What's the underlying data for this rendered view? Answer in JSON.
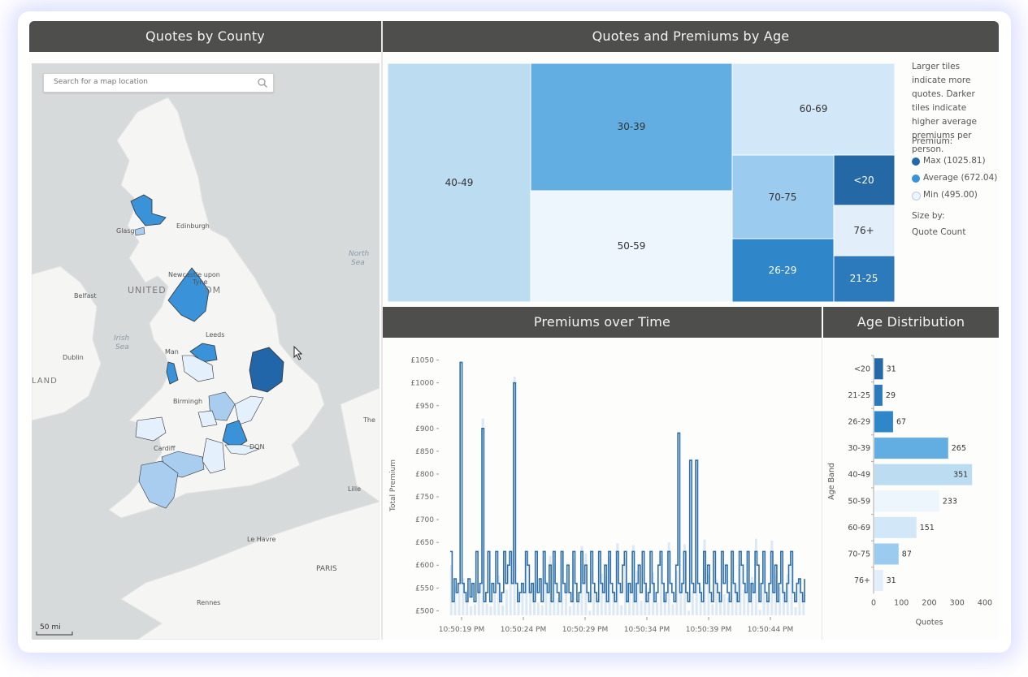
{
  "headers": {
    "county": "Quotes by County",
    "age": "Quotes and Premiums by Age",
    "time": "Premiums over Time",
    "dist": "Age Distribution"
  },
  "map": {
    "search_placeholder": "Search for a map location",
    "scale": "50 mi",
    "labels": {
      "edinburgh": "Edinburgh",
      "glasgow": "Glasg",
      "newcastle": "Newcastle upon",
      "tyne": "Tyne",
      "united": "UNITED",
      "kingdom": "OM",
      "belfast": "Belfast",
      "irish": "Irish",
      "sea": "Sea",
      "north": "North",
      "northsea": "Sea",
      "leeds": "Leeds",
      "man": "Man",
      "dublin": "Dublin",
      "land": "LAND",
      "birmingham": "Birmingh",
      "cardiff": "Cardiff",
      "london": "DON",
      "the": "The",
      "lille": "Lille",
      "lehavre": "Le Havre",
      "paris": "PARIS",
      "rennes": "Rennes"
    },
    "colors": {
      "max": "#2166a8",
      "mid": "#3a93d8",
      "light": "#a8cdef",
      "min": "#e4f0fb"
    }
  },
  "treemap": {
    "legend": {
      "desc": "Larger tiles indicate more quotes. Darker tiles indicate higher average premiums per person.",
      "premium_label": "Premium:",
      "max": "Max (1025.81)",
      "avg": "Average (672.04)",
      "min": "Min (495.00)",
      "size_label": "Size by:",
      "size_value": "Quote Count"
    },
    "tiles": [
      {
        "label": "40-49",
        "color": "#bcdcf2"
      },
      {
        "label": "30-39",
        "color": "#62aee2"
      },
      {
        "label": "50-59",
        "color": "#eef6fd"
      },
      {
        "label": "60-69",
        "color": "#d2e8f8"
      },
      {
        "label": "70-75",
        "color": "#9ccbf0"
      },
      {
        "label": "<20",
        "color": "#2468a6"
      },
      {
        "label": "76+",
        "color": "#e2effb"
      },
      {
        "label": "26-29",
        "color": "#2f86c8"
      },
      {
        "label": "21-25",
        "color": "#2c7abb"
      }
    ]
  },
  "chart_data": [
    {
      "type": "line",
      "title": "Premiums over Time",
      "ylabel": "Total Premium",
      "ylim": [
        490,
        1060
      ],
      "y_ticks": [
        "£500",
        "£550",
        "£600",
        "£650",
        "£700",
        "£750",
        "£800",
        "£850",
        "£900",
        "£950",
        "£1000",
        "£1050"
      ],
      "x_ticks": [
        "10:50:19 PM",
        "10:50:24 PM",
        "10:50:29 PM",
        "10:50:34 PM",
        "10:50:39 PM",
        "10:50:44 PM"
      ],
      "series": [
        {
          "values": [
            630,
            520,
            570,
            540,
            560,
            1045,
            560,
            540,
            520,
            570,
            530,
            560,
            520,
            630,
            540,
            560,
            900,
            520,
            540,
            630,
            520,
            560,
            540,
            630,
            560,
            520,
            540,
            630,
            560,
            600,
            630,
            560,
            1000,
            560,
            520,
            540,
            560,
            540,
            630,
            600,
            540,
            560,
            520,
            630,
            540,
            570,
            520,
            630,
            560,
            540,
            600,
            520,
            630,
            560,
            540,
            520,
            630,
            560,
            540,
            600,
            540,
            520,
            630,
            560,
            520,
            540,
            630,
            560,
            600,
            540,
            520,
            630,
            560,
            540,
            520,
            630,
            560,
            540,
            600,
            520,
            630,
            560,
            540,
            520,
            630,
            560,
            540,
            600,
            630,
            520,
            560,
            540,
            630,
            520,
            560,
            600,
            540,
            630,
            560,
            520,
            540,
            630,
            560,
            520,
            540,
            600,
            630,
            560,
            520,
            540,
            630,
            560,
            540,
            520,
            600,
            890,
            540,
            560,
            630,
            540,
            520,
            830,
            560,
            540,
            830,
            560,
            540,
            520,
            630,
            560,
            600,
            540,
            520,
            630,
            560,
            540,
            520,
            630,
            560,
            600,
            540,
            520,
            630,
            560,
            540,
            520,
            630,
            600,
            560,
            540,
            630,
            520,
            560,
            540,
            630,
            600,
            520,
            560,
            630,
            540,
            520,
            560,
            630,
            540,
            600,
            520,
            560,
            630,
            540,
            520,
            560,
            600,
            630,
            540,
            520,
            560,
            570,
            540,
            520,
            570
          ]
        }
      ]
    },
    {
      "type": "bar",
      "title": "Age Distribution",
      "xlabel": "Quotes",
      "ylabel": "Age Band",
      "xlim": [
        0,
        400
      ],
      "x_ticks": [
        0,
        100,
        200,
        300,
        400
      ],
      "categories": [
        "<20",
        "21-25",
        "26-29",
        "30-39",
        "40-49",
        "50-59",
        "60-69",
        "70-75",
        "76+"
      ],
      "values": [
        31,
        29,
        67,
        265,
        351,
        233,
        151,
        87,
        31
      ],
      "colors": [
        "#2468a6",
        "#2c7abb",
        "#2f86c8",
        "#62aee2",
        "#bcdcf2",
        "#eef6fd",
        "#d2e8f8",
        "#9ccbf0",
        "#e2effb"
      ]
    }
  ]
}
